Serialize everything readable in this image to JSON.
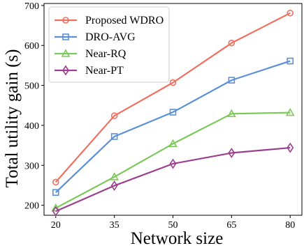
{
  "chart_data": {
    "type": "line",
    "title": "",
    "xlabel": "Network size",
    "ylabel": "Total utility gain (s)",
    "x": [
      20,
      35,
      50,
      65,
      80
    ],
    "x_tick_labels": [
      "20",
      "35",
      "50",
      "65",
      "80"
    ],
    "y_tick_labels": [
      "200",
      "300",
      "400",
      "500",
      "600",
      "700"
    ],
    "y_ticks": [
      200,
      300,
      400,
      500,
      600,
      700
    ],
    "xlim": [
      17,
      83
    ],
    "ylim": [
      175,
      705
    ],
    "grid": false,
    "legend_position": "top-left",
    "series": [
      {
        "name": "Proposed WDRO",
        "color": "#f07060",
        "marker": "circle",
        "values": [
          258,
          424,
          507,
          606,
          681
        ]
      },
      {
        "name": "DRO-AVG",
        "color": "#5a90d8",
        "marker": "square",
        "values": [
          232,
          372,
          433,
          513,
          561
        ]
      },
      {
        "name": "Near-RQ",
        "color": "#7cc85a",
        "marker": "triangle",
        "values": [
          193,
          271,
          354,
          429,
          432
        ]
      },
      {
        "name": "Near-PT",
        "color": "#9b3f8e",
        "marker": "diamond",
        "values": [
          185,
          249,
          304,
          331,
          344
        ]
      }
    ]
  }
}
